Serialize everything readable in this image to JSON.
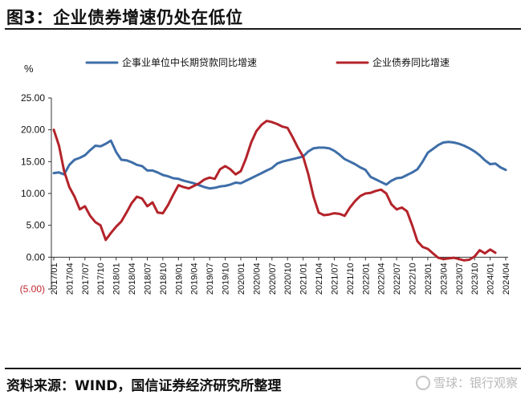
{
  "header": {
    "title": "图3：企业债券增速仍处在低位"
  },
  "footer": {
    "source": "资料来源：WIND，国信证券经济研究所整理",
    "watermark": "雪球：银行观察"
  },
  "colors": {
    "series1": "#3e6ea8",
    "series2": "#b4232a",
    "axis": "#333333"
  },
  "chart_data": {
    "type": "line",
    "title": "",
    "unit_label": "%",
    "ylim": [
      -5,
      25
    ],
    "y_ticks": [
      "25.00",
      "20.00",
      "15.00",
      "10.00",
      "5.00",
      "0.00",
      "(5.00)"
    ],
    "y_tick_values": [
      25,
      20,
      15,
      10,
      5,
      0,
      -5
    ],
    "x_tick_labels": [
      "2017/01",
      "2017/04",
      "2017/07",
      "2017/10",
      "2018/01",
      "2018/04",
      "2018/07",
      "2018/10",
      "2019/01",
      "2019/04",
      "2019/07",
      "2019/10",
      "2020/01",
      "2020/04",
      "2020/07",
      "2020/10",
      "2021/01",
      "2021/04",
      "2021/07",
      "2021/10",
      "2022/01",
      "2022/04",
      "2022/07",
      "2022/10",
      "2023/01",
      "2023/04",
      "2023/07",
      "2023/10",
      "2024/01",
      "2024/04"
    ],
    "legend_position": "top",
    "series": [
      {
        "name": "企事业单位中长期贷款同比增速",
        "values": [
          13.2,
          13.3,
          13.0,
          14.5,
          15.3,
          15.6,
          16.0,
          16.8,
          17.5,
          17.4,
          17.8,
          18.3,
          16.5,
          15.3,
          15.2,
          14.9,
          14.5,
          14.3,
          13.6,
          13.6,
          13.3,
          12.9,
          12.7,
          12.4,
          12.3,
          12.0,
          11.8,
          11.6,
          11.3,
          11.0,
          10.8,
          10.9,
          11.1,
          11.2,
          11.4,
          11.7,
          11.6,
          12.0,
          12.4,
          12.8,
          13.2,
          13.6,
          14.0,
          14.7,
          15.0,
          15.2,
          15.4,
          15.6,
          15.8,
          16.6,
          17.1,
          17.2,
          17.2,
          17.1,
          16.7,
          16.1,
          15.4,
          15.0,
          14.6,
          14.1,
          13.7,
          12.6,
          12.2,
          11.8,
          11.4,
          12.0,
          12.4,
          12.5,
          12.9,
          13.3,
          13.8,
          15.0,
          16.4,
          17.0,
          17.6,
          18.0,
          18.1,
          18.0,
          17.8,
          17.5,
          17.1,
          16.6,
          16.0,
          15.2,
          14.6,
          14.7,
          14.1,
          13.7
        ]
      },
      {
        "name": "企业债券同比增速",
        "values": [
          20.0,
          17.5,
          13.5,
          11.0,
          9.5,
          7.5,
          8.0,
          6.5,
          5.5,
          5.0,
          2.7,
          3.8,
          4.8,
          5.6,
          7.0,
          8.5,
          9.5,
          9.2,
          8.0,
          8.6,
          7.0,
          6.9,
          8.2,
          9.8,
          11.3,
          11.0,
          10.8,
          11.2,
          11.6,
          12.2,
          12.5,
          12.3,
          13.8,
          14.3,
          13.8,
          13.0,
          13.5,
          15.5,
          18.0,
          19.8,
          20.8,
          21.4,
          21.2,
          20.9,
          20.5,
          20.3,
          18.8,
          17.2,
          15.8,
          13.0,
          9.5,
          7.0,
          6.6,
          6.7,
          6.9,
          6.8,
          6.5,
          7.8,
          8.8,
          9.6,
          10.0,
          10.1,
          10.4,
          10.6,
          10.0,
          8.3,
          7.5,
          7.8,
          7.2,
          5.0,
          2.5,
          1.6,
          1.3,
          0.6,
          -0.1,
          -0.3,
          -0.2,
          -0.1,
          -0.3,
          -0.5,
          -0.4,
          0.1,
          1.1,
          0.6,
          1.2,
          0.7
        ]
      }
    ]
  }
}
